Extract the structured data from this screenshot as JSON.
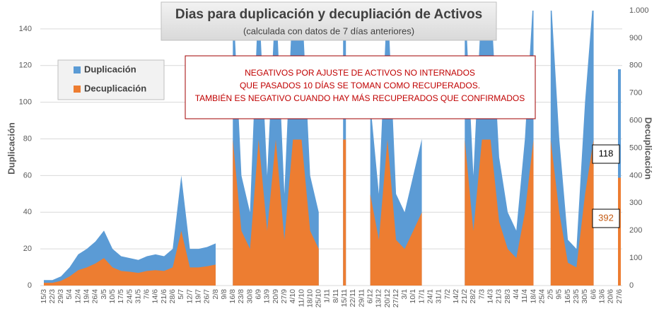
{
  "chart_data": {
    "type": "area",
    "title": "Dias para duplicación y decupliación de Activos",
    "subtitle": "(calculada con datos de 7 días anteriores)",
    "annotations": [
      "NEGATIVOS POR AJUSTE DE ACTIVOS NO INTERNADOS",
      "QUE PASADOS 10 DÍAS SE TOMAN COMO RECUPERADOS.",
      "TAMBIÉN ES NEGATIVO CUANDO HAY MÁS RECUPERADOS QUE CONFIRMADOS"
    ],
    "ylabel": "Duplicación",
    "y2label": "Decuplicación",
    "categories": [
      "15/3",
      "22/3",
      "29/3",
      "5/4",
      "12/4",
      "19/4",
      "26/4",
      "3/5",
      "10/5",
      "17/5",
      "24/5",
      "31/5",
      "7/6",
      "14/6",
      "21/6",
      "28/6",
      "5/7",
      "12/7",
      "19/7",
      "26/7",
      "2/8",
      "9/8",
      "16/8",
      "23/8",
      "30/8",
      "6/9",
      "13/9",
      "20/9",
      "27/9",
      "4/10",
      "11/10",
      "18/10",
      "25/10",
      "1/11",
      "8/11",
      "15/11",
      "22/11",
      "29/11",
      "6/12",
      "13/12",
      "20/12",
      "27/12",
      "3/1",
      "10/1",
      "17/1",
      "24/1",
      "31/1",
      "7/2",
      "14/2",
      "21/2",
      "28/2",
      "7/3",
      "14/3",
      "21/3",
      "28/3",
      "4/4",
      "11/4",
      "18/4",
      "25/4",
      "2/5",
      "9/5",
      "16/5",
      "23/5",
      "30/5",
      "6/6",
      "13/6",
      "20/6",
      "27/6"
    ],
    "series": [
      {
        "name": "Duplicación",
        "color": "#5b9bd5",
        "axis": "y",
        "values": [
          3,
          3,
          5,
          10,
          17,
          20,
          24,
          30,
          20,
          16,
          15,
          14,
          16,
          17,
          16,
          20,
          60,
          20,
          20,
          21,
          23,
          null,
          160,
          60,
          40,
          160,
          60,
          160,
          50,
          160,
          160,
          60,
          40,
          null,
          null,
          160,
          null,
          null,
          100,
          50,
          160,
          50,
          40,
          60,
          80,
          null,
          null,
          null,
          null,
          160,
          60,
          160,
          160,
          70,
          40,
          30,
          80,
          160,
          null,
          160,
          80,
          25,
          20,
          100,
          160,
          null,
          null,
          118
        ]
      },
      {
        "name": "Decuplicación",
        "color": "#ed7d31",
        "axis": "y2",
        "values": [
          10,
          10,
          17,
          33,
          56,
          66,
          80,
          100,
          66,
          53,
          50,
          46,
          53,
          56,
          53,
          66,
          199,
          66,
          66,
          70,
          76,
          null,
          531,
          199,
          133,
          531,
          199,
          531,
          166,
          531,
          531,
          199,
          133,
          null,
          null,
          531,
          null,
          null,
          332,
          166,
          531,
          166,
          133,
          199,
          266,
          null,
          null,
          null,
          null,
          531,
          199,
          531,
          531,
          232,
          133,
          100,
          266,
          531,
          null,
          531,
          266,
          83,
          66,
          332,
          531,
          null,
          null,
          392
        ]
      }
    ],
    "ylim": [
      0,
      150
    ],
    "yticks": [
      0,
      20,
      40,
      60,
      80,
      100,
      120,
      140
    ],
    "y2lim": [
      0,
      1000
    ],
    "y2ticks": [
      0,
      100,
      200,
      300,
      400,
      500,
      600,
      700,
      800,
      900,
      {
        "value": 1000,
        "label": "1.000"
      }
    ],
    "grid": true,
    "legend": "upper left"
  }
}
